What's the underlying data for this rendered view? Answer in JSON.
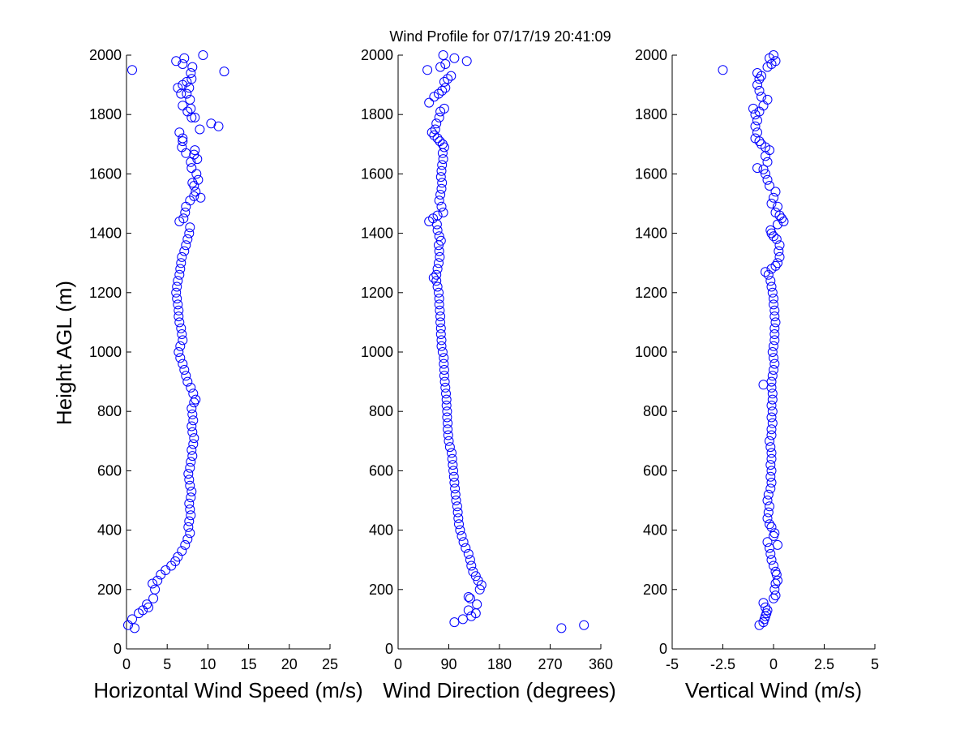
{
  "title": "Wind Profile for  07/17/19 20:41:09",
  "ylabel": "Height AGL (m)",
  "y_ticks": [
    0,
    200,
    400,
    600,
    800,
    1000,
    1200,
    1400,
    1600,
    1800,
    2000
  ],
  "marker_color": "#0000ff",
  "chart_data": [
    {
      "type": "scatter",
      "xlabel": "Horizontal Wind Speed (m/s)",
      "xlim": [
        0,
        25
      ],
      "x_ticks": [
        "0",
        "5",
        "10",
        "15",
        "20",
        "25"
      ],
      "ylabel": "Height AGL (m)",
      "ylim": [
        0,
        2000
      ],
      "marker": "open-circle",
      "points": [
        [
          0.2,
          80
        ],
        [
          0.7,
          100
        ],
        [
          1,
          70
        ],
        [
          1.5,
          120
        ],
        [
          2,
          130
        ],
        [
          2.5,
          150
        ],
        [
          2.7,
          140
        ],
        [
          3.3,
          170
        ],
        [
          3.5,
          200
        ],
        [
          3.2,
          220
        ],
        [
          3.8,
          230
        ],
        [
          4.2,
          250
        ],
        [
          4.8,
          265
        ],
        [
          5.5,
          280
        ],
        [
          6,
          295
        ],
        [
          6.3,
          310
        ],
        [
          6.8,
          330
        ],
        [
          7.2,
          350
        ],
        [
          7.5,
          370
        ],
        [
          7.8,
          390
        ],
        [
          7.6,
          410
        ],
        [
          7.7,
          430
        ],
        [
          7.9,
          450
        ],
        [
          7.8,
          470
        ],
        [
          7.7,
          490
        ],
        [
          7.9,
          510
        ],
        [
          8,
          530
        ],
        [
          7.8,
          550
        ],
        [
          7.7,
          570
        ],
        [
          7.6,
          590
        ],
        [
          7.8,
          610
        ],
        [
          7.9,
          630
        ],
        [
          8.1,
          650
        ],
        [
          8,
          670
        ],
        [
          8.2,
          690
        ],
        [
          8.3,
          710
        ],
        [
          8.1,
          730
        ],
        [
          8,
          750
        ],
        [
          8.2,
          770
        ],
        [
          8.1,
          790
        ],
        [
          8,
          810
        ],
        [
          8.3,
          830
        ],
        [
          8.5,
          840
        ],
        [
          8.2,
          860
        ],
        [
          7.9,
          880
        ],
        [
          7.5,
          900
        ],
        [
          7.3,
          920
        ],
        [
          7.1,
          940
        ],
        [
          6.9,
          960
        ],
        [
          6.6,
          980
        ],
        [
          6.4,
          1000
        ],
        [
          6.6,
          1020
        ],
        [
          6.9,
          1040
        ],
        [
          6.8,
          1060
        ],
        [
          6.7,
          1080
        ],
        [
          6.5,
          1100
        ],
        [
          6.4,
          1120
        ],
        [
          6.4,
          1140
        ],
        [
          6.3,
          1160
        ],
        [
          6.2,
          1180
        ],
        [
          6.1,
          1200
        ],
        [
          6.2,
          1220
        ],
        [
          6.3,
          1240
        ],
        [
          6.5,
          1260
        ],
        [
          6.6,
          1280
        ],
        [
          6.7,
          1300
        ],
        [
          6.8,
          1320
        ],
        [
          7.1,
          1340
        ],
        [
          7.3,
          1360
        ],
        [
          7.5,
          1380
        ],
        [
          7.7,
          1400
        ],
        [
          7.8,
          1420
        ],
        [
          6.5,
          1440
        ],
        [
          7,
          1450
        ],
        [
          7.2,
          1470
        ],
        [
          7.3,
          1490
        ],
        [
          7.8,
          1510
        ],
        [
          8.3,
          1525
        ],
        [
          9.1,
          1520
        ],
        [
          8.5,
          1540
        ],
        [
          8.3,
          1560
        ],
        [
          8.1,
          1570
        ],
        [
          8.8,
          1580
        ],
        [
          8.6,
          1600
        ],
        [
          8,
          1620
        ],
        [
          7.9,
          1640
        ],
        [
          8.7,
          1650
        ],
        [
          8.3,
          1665
        ],
        [
          7.3,
          1670
        ],
        [
          8.4,
          1680
        ],
        [
          6.8,
          1690
        ],
        [
          6.9,
          1710
        ],
        [
          6.9,
          1720
        ],
        [
          6.5,
          1740
        ],
        [
          9,
          1750
        ],
        [
          10.4,
          1770
        ],
        [
          11.3,
          1760
        ],
        [
          8,
          1790
        ],
        [
          8.4,
          1790
        ],
        [
          7.5,
          1810
        ],
        [
          7.9,
          1820
        ],
        [
          6.9,
          1830
        ],
        [
          7.8,
          1850
        ],
        [
          7.4,
          1870
        ],
        [
          6.7,
          1870
        ],
        [
          6.3,
          1890
        ],
        [
          7.7,
          1890
        ],
        [
          6.9,
          1900
        ],
        [
          7.4,
          1910
        ],
        [
          8,
          1920
        ],
        [
          7.9,
          1940
        ],
        [
          12,
          1945
        ],
        [
          0.7,
          1950
        ],
        [
          8.1,
          1960
        ],
        [
          6.9,
          1970
        ],
        [
          6.1,
          1980
        ],
        [
          7.1,
          1990
        ],
        [
          9.4,
          2000
        ]
      ]
    },
    {
      "type": "scatter",
      "xlabel": "Wind Direction (degrees)",
      "xlim": [
        0,
        360
      ],
      "x_ticks": [
        "0",
        "90",
        "180",
        "270",
        "360"
      ],
      "ylabel": "Height AGL (m)",
      "ylim": [
        0,
        2000
      ],
      "marker": "open-circle",
      "points": [
        [
          290,
          70
        ],
        [
          330,
          80
        ],
        [
          100,
          90
        ],
        [
          115,
          100
        ],
        [
          130,
          110
        ],
        [
          138,
          120
        ],
        [
          125,
          130
        ],
        [
          140,
          150
        ],
        [
          128,
          170
        ],
        [
          125,
          175
        ],
        [
          145,
          200
        ],
        [
          148,
          215
        ],
        [
          142,
          230
        ],
        [
          138,
          245
        ],
        [
          133,
          260
        ],
        [
          130,
          280
        ],
        [
          128,
          300
        ],
        [
          125,
          320
        ],
        [
          120,
          340
        ],
        [
          116,
          360
        ],
        [
          113,
          380
        ],
        [
          110,
          400
        ],
        [
          108,
          420
        ],
        [
          107,
          440
        ],
        [
          106,
          460
        ],
        [
          105,
          480
        ],
        [
          103,
          500
        ],
        [
          102,
          520
        ],
        [
          101,
          540
        ],
        [
          100,
          560
        ],
        [
          99,
          580
        ],
        [
          98,
          600
        ],
        [
          97,
          620
        ],
        [
          96,
          640
        ],
        [
          95,
          660
        ],
        [
          92,
          680
        ],
        [
          90,
          700
        ],
        [
          89,
          720
        ],
        [
          88,
          740
        ],
        [
          88,
          760
        ],
        [
          87,
          780
        ],
        [
          87,
          800
        ],
        [
          86,
          820
        ],
        [
          86,
          840
        ],
        [
          85,
          860
        ],
        [
          84,
          880
        ],
        [
          83,
          900
        ],
        [
          82,
          920
        ],
        [
          82,
          940
        ],
        [
          81,
          960
        ],
        [
          81,
          980
        ],
        [
          79,
          1000
        ],
        [
          77,
          1020
        ],
        [
          77,
          1040
        ],
        [
          76,
          1060
        ],
        [
          76,
          1080
        ],
        [
          75,
          1100
        ],
        [
          75,
          1120
        ],
        [
          74,
          1140
        ],
        [
          73,
          1160
        ],
        [
          73,
          1180
        ],
        [
          72,
          1200
        ],
        [
          70,
          1220
        ],
        [
          68,
          1240
        ],
        [
          63,
          1250
        ],
        [
          68,
          1260
        ],
        [
          70,
          1280
        ],
        [
          72,
          1300
        ],
        [
          74,
          1320
        ],
        [
          73,
          1340
        ],
        [
          72,
          1360
        ],
        [
          76,
          1375
        ],
        [
          73,
          1390
        ],
        [
          70,
          1410
        ],
        [
          69,
          1430
        ],
        [
          55,
          1440
        ],
        [
          62,
          1450
        ],
        [
          70,
          1460
        ],
        [
          80,
          1470
        ],
        [
          77,
          1490
        ],
        [
          73,
          1510
        ],
        [
          75,
          1530
        ],
        [
          77,
          1550
        ],
        [
          78,
          1570
        ],
        [
          76,
          1590
        ],
        [
          77,
          1610
        ],
        [
          78,
          1630
        ],
        [
          80,
          1650
        ],
        [
          79,
          1670
        ],
        [
          82,
          1690
        ],
        [
          79,
          1700
        ],
        [
          74,
          1710
        ],
        [
          70,
          1720
        ],
        [
          64,
          1730
        ],
        [
          60,
          1740
        ],
        [
          66,
          1750
        ],
        [
          68,
          1770
        ],
        [
          73,
          1790
        ],
        [
          75,
          1810
        ],
        [
          82,
          1820
        ],
        [
          55,
          1840
        ],
        [
          64,
          1860
        ],
        [
          72,
          1870
        ],
        [
          78,
          1880
        ],
        [
          84,
          1890
        ],
        [
          82,
          1910
        ],
        [
          88,
          1920
        ],
        [
          94,
          1930
        ],
        [
          52,
          1950
        ],
        [
          75,
          1960
        ],
        [
          84,
          1970
        ],
        [
          122,
          1980
        ],
        [
          100,
          1990
        ],
        [
          80,
          2000
        ]
      ]
    },
    {
      "type": "scatter",
      "xlabel": "Vertical Wind (m/s)",
      "xlim": [
        -5,
        5
      ],
      "x_ticks": [
        "-5",
        "-2.5",
        "0",
        "2.5",
        "5"
      ],
      "ylabel": "Height AGL (m)",
      "ylim": [
        0,
        2000
      ],
      "marker": "open-circle",
      "points": [
        [
          -0.7,
          80
        ],
        [
          -0.5,
          90
        ],
        [
          -0.45,
          100
        ],
        [
          -0.4,
          110
        ],
        [
          -0.35,
          120
        ],
        [
          -0.3,
          130
        ],
        [
          -0.4,
          140
        ],
        [
          -0.5,
          155
        ],
        [
          0,
          170
        ],
        [
          0.1,
          180
        ],
        [
          0.05,
          200
        ],
        [
          0.1,
          220
        ],
        [
          0.2,
          230
        ],
        [
          0.15,
          250
        ],
        [
          0.1,
          260
        ],
        [
          0,
          280
        ],
        [
          -0.1,
          300
        ],
        [
          -0.15,
          320
        ],
        [
          -0.2,
          340
        ],
        [
          0.2,
          350
        ],
        [
          -0.3,
          360
        ],
        [
          0,
          380
        ],
        [
          0.05,
          390
        ],
        [
          -0.1,
          410
        ],
        [
          -0.2,
          420
        ],
        [
          -0.3,
          440
        ],
        [
          -0.25,
          460
        ],
        [
          -0.2,
          480
        ],
        [
          -0.3,
          500
        ],
        [
          -0.25,
          520
        ],
        [
          -0.15,
          540
        ],
        [
          -0.1,
          560
        ],
        [
          -0.15,
          580
        ],
        [
          -0.1,
          600
        ],
        [
          -0.15,
          620
        ],
        [
          -0.1,
          640
        ],
        [
          -0.1,
          660
        ],
        [
          -0.15,
          680
        ],
        [
          -0.2,
          700
        ],
        [
          -0.1,
          720
        ],
        [
          -0.1,
          740
        ],
        [
          -0.05,
          760
        ],
        [
          -0.1,
          780
        ],
        [
          -0.05,
          800
        ],
        [
          -0.1,
          820
        ],
        [
          -0.05,
          840
        ],
        [
          -0.05,
          860
        ],
        [
          -0.1,
          880
        ],
        [
          -0.5,
          890
        ],
        [
          -0.1,
          900
        ],
        [
          -0.05,
          920
        ],
        [
          0,
          940
        ],
        [
          0.05,
          960
        ],
        [
          0,
          980
        ],
        [
          -0.05,
          1000
        ],
        [
          0,
          1020
        ],
        [
          0.05,
          1040
        ],
        [
          0.05,
          1060
        ],
        [
          0.05,
          1080
        ],
        [
          0.1,
          1100
        ],
        [
          0.05,
          1120
        ],
        [
          0.05,
          1140
        ],
        [
          0,
          1160
        ],
        [
          0,
          1180
        ],
        [
          -0.05,
          1200
        ],
        [
          -0.1,
          1220
        ],
        [
          -0.15,
          1240
        ],
        [
          -0.25,
          1260
        ],
        [
          -0.4,
          1270
        ],
        [
          -0.1,
          1280
        ],
        [
          0.1,
          1290
        ],
        [
          0.2,
          1300
        ],
        [
          0.3,
          1320
        ],
        [
          0.25,
          1340
        ],
        [
          0.3,
          1360
        ],
        [
          0.15,
          1380
        ],
        [
          0,
          1390
        ],
        [
          -0.1,
          1400
        ],
        [
          -0.15,
          1410
        ],
        [
          0.2,
          1430
        ],
        [
          0.5,
          1440
        ],
        [
          0.4,
          1450
        ],
        [
          0.3,
          1460
        ],
        [
          0.1,
          1470
        ],
        [
          0.2,
          1490
        ],
        [
          -0.1,
          1500
        ],
        [
          0,
          1520
        ],
        [
          0.1,
          1540
        ],
        [
          -0.2,
          1560
        ],
        [
          -0.3,
          1580
        ],
        [
          -0.4,
          1600
        ],
        [
          -0.5,
          1615
        ],
        [
          -0.8,
          1620
        ],
        [
          -0.3,
          1640
        ],
        [
          -0.4,
          1660
        ],
        [
          -0.2,
          1680
        ],
        [
          -0.4,
          1690
        ],
        [
          -0.6,
          1700
        ],
        [
          -0.7,
          1710
        ],
        [
          -0.9,
          1720
        ],
        [
          -0.8,
          1740
        ],
        [
          -0.9,
          1760
        ],
        [
          -0.8,
          1780
        ],
        [
          -0.9,
          1800
        ],
        [
          -1,
          1820
        ],
        [
          -0.7,
          1810
        ],
        [
          -0.5,
          1830
        ],
        [
          -0.3,
          1850
        ],
        [
          -0.6,
          1860
        ],
        [
          -0.7,
          1880
        ],
        [
          -0.8,
          1900
        ],
        [
          -0.7,
          1920
        ],
        [
          -0.6,
          1930
        ],
        [
          -0.8,
          1940
        ],
        [
          -2.5,
          1950
        ],
        [
          -0.3,
          1960
        ],
        [
          -0.1,
          1970
        ],
        [
          0.1,
          1980
        ],
        [
          -0.2,
          1990
        ],
        [
          0,
          2000
        ]
      ]
    }
  ]
}
